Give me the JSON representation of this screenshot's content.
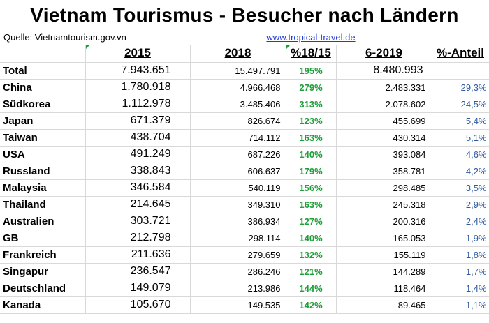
{
  "title": "Vietnam Tourismus - Besucher nach Ländern",
  "source": "Quelle: Vietnamtourism.gov.vn",
  "link": "www.tropical-travel.de",
  "headers": [
    "",
    "2015",
    "2018",
    "%18/15",
    "6-2019",
    "%-Anteil"
  ],
  "rows": [
    {
      "country": "Total",
      "y2015": "7.943.651",
      "y2018": "15.497.791",
      "pct": "195%",
      "y2019": "8.480.993",
      "share": ""
    },
    {
      "country": "China",
      "y2015": "1.780.918",
      "y2018": "4.966.468",
      "pct": "279%",
      "y2019": "2.483.331",
      "share": "29,3%"
    },
    {
      "country": "Südkorea",
      "y2015": "1.112.978",
      "y2018": "3.485.406",
      "pct": "313%",
      "y2019": "2.078.602",
      "share": "24,5%"
    },
    {
      "country": "Japan",
      "y2015": "671.379",
      "y2018": "826.674",
      "pct": "123%",
      "y2019": "455.699",
      "share": "5,4%"
    },
    {
      "country": "Taiwan",
      "y2015": "438.704",
      "y2018": "714.112",
      "pct": "163%",
      "y2019": "430.314",
      "share": "5,1%"
    },
    {
      "country": "USA",
      "y2015": "491.249",
      "y2018": "687.226",
      "pct": "140%",
      "y2019": "393.084",
      "share": "4,6%"
    },
    {
      "country": "Russland",
      "y2015": "338.843",
      "y2018": "606.637",
      "pct": "179%",
      "y2019": "358.781",
      "share": "4,2%"
    },
    {
      "country": "Malaysia",
      "y2015": "346.584",
      "y2018": "540.119",
      "pct": "156%",
      "y2019": "298.485",
      "share": "3,5%"
    },
    {
      "country": "Thailand",
      "y2015": "214.645",
      "y2018": "349.310",
      "pct": "163%",
      "y2019": "245.318",
      "share": "2,9%"
    },
    {
      "country": "Australien",
      "y2015": "303.721",
      "y2018": "386.934",
      "pct": "127%",
      "y2019": "200.316",
      "share": "2,4%"
    },
    {
      "country": "GB",
      "y2015": "212.798",
      "y2018": "298.114",
      "pct": "140%",
      "y2019": "165.053",
      "share": "1,9%"
    },
    {
      "country": "Frankreich",
      "y2015": "211.636",
      "y2018": "279.659",
      "pct": "132%",
      "y2019": "155.119",
      "share": "1,8%"
    },
    {
      "country": "Singapur",
      "y2015": "236.547",
      "y2018": "286.246",
      "pct": "121%",
      "y2019": "144.289",
      "share": "1,7%"
    },
    {
      "country": "Deutschland",
      "y2015": "149.079",
      "y2018": "213.986",
      "pct": "144%",
      "y2019": "118.464",
      "share": "1,4%"
    },
    {
      "country": "Kanada",
      "y2015": "105.670",
      "y2018": "149.535",
      "pct": "142%",
      "y2019": "89.465",
      "share": "1,1%"
    }
  ],
  "colors": {
    "percent_green": "#1f9e3a",
    "share_blue": "#2f5aa0",
    "link_blue": "#1f3bd6"
  }
}
